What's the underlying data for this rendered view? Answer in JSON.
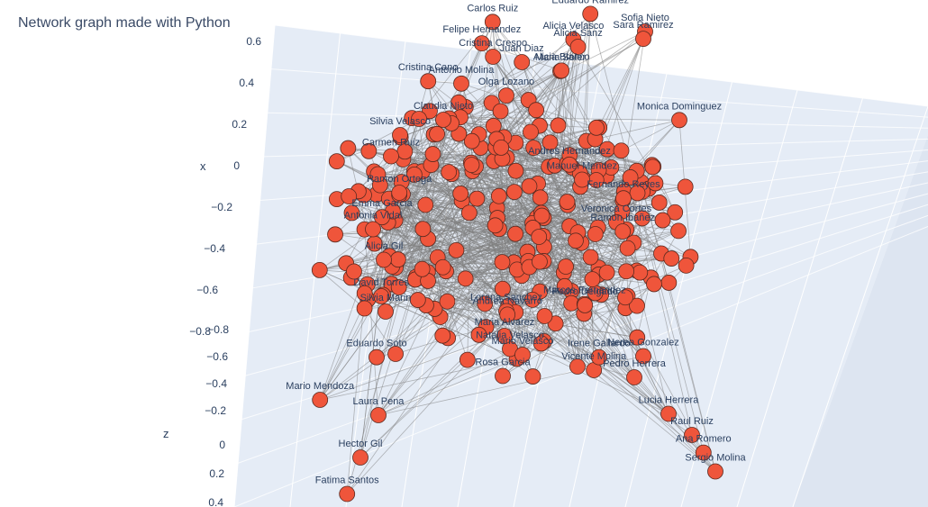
{
  "title": "Network graph made with Python",
  "colors": {
    "node_fill": "#ef553b",
    "node_stroke": "#5a2a20",
    "edge": "#7f7f7f",
    "pane_back": "#e5ecf6",
    "pane_floor": "#dde5f1",
    "grid": "#ffffff",
    "text": "#2a3f5f"
  },
  "chart_data": {
    "type": "scatter",
    "subtype": "3d-network",
    "title": "Network graph made with Python",
    "axes": {
      "x": {
        "label": "x",
        "ticks": [
          "0.6",
          "0.4",
          "0.2",
          "0",
          "−0.2",
          "−0.4",
          "−0.6",
          "−0.8"
        ]
      },
      "z": {
        "label": "z",
        "ticks": [
          "−0.8",
          "−0.6",
          "−0.4",
          "−0.2",
          "0",
          "0.2",
          "0.4"
        ]
      }
    },
    "grid": true,
    "legend": "none",
    "nodes": [
      {
        "label": "Carlos Ruiz",
        "x": 0.57,
        "y": 0.05,
        "z": -0.63
      },
      {
        "label": "Eduardo Ramirez",
        "x": 0.6,
        "y": 0.5,
        "z": -0.62
      },
      {
        "label": "Sofia Nieto",
        "x": 0.55,
        "y": 0.75,
        "z": -0.6
      },
      {
        "label": "Sara Ramirez",
        "x": 0.53,
        "y": 0.74,
        "z": -0.59
      },
      {
        "label": "Alicia Velasco",
        "x": 0.52,
        "y": 0.42,
        "z": -0.61
      },
      {
        "label": "Alicia Sanz",
        "x": 0.5,
        "y": 0.44,
        "z": -0.6
      },
      {
        "label": "Felipe Hernandez",
        "x": 0.5,
        "y": 0.0,
        "z": -0.63
      },
      {
        "label": "Cristina Crespo",
        "x": 0.46,
        "y": 0.05,
        "z": -0.62
      },
      {
        "label": "Juan Diaz",
        "x": 0.45,
        "y": 0.18,
        "z": -0.6
      },
      {
        "label": "Maria Soler",
        "x": 0.44,
        "y": 0.35,
        "z": -0.55
      },
      {
        "label": "Alicia Blanco",
        "x": 0.43,
        "y": 0.36,
        "z": -0.58
      },
      {
        "label": "Cristina Cano",
        "x": 0.38,
        "y": -0.25,
        "z": -0.62
      },
      {
        "label": "Antonio Molina",
        "x": 0.38,
        "y": -0.1,
        "z": -0.6
      },
      {
        "label": "Olga Lozano",
        "x": 0.36,
        "y": 0.1,
        "z": -0.55
      },
      {
        "label": "Monica Dominguez",
        "x": 0.28,
        "y": 0.9,
        "z": -0.55
      },
      {
        "label": "Claudia Nieto",
        "x": 0.3,
        "y": -0.2,
        "z": -0.5
      },
      {
        "label": "Silvia Velasco",
        "x": 0.25,
        "y": -0.4,
        "z": -0.5
      },
      {
        "label": "Carmen Ruiz",
        "x": 0.2,
        "y": -0.45,
        "z": -0.45
      },
      {
        "label": "Andres Hernandez",
        "x": 0.23,
        "y": 0.35,
        "z": -0.3
      },
      {
        "label": "Manuel Mendez",
        "x": 0.2,
        "y": 0.4,
        "z": -0.25
      },
      {
        "label": "Fernando Reyes",
        "x": 0.12,
        "y": 0.6,
        "z": -0.3
      },
      {
        "label": "Veronica Cortes",
        "x": 0.08,
        "y": 0.55,
        "z": -0.2
      },
      {
        "label": "Ramon Ibañez",
        "x": 0.05,
        "y": 0.58,
        "z": -0.2
      },
      {
        "label": "Ramon Ortega",
        "x": 0.1,
        "y": -0.42,
        "z": -0.4
      },
      {
        "label": "Emma Garcia",
        "x": 0.02,
        "y": -0.5,
        "z": -0.4
      },
      {
        "label": "Antonia Vidal",
        "x": 0.0,
        "y": -0.55,
        "z": -0.35
      },
      {
        "label": "Alicia Gil",
        "x": -0.1,
        "y": -0.5,
        "z": -0.35
      },
      {
        "label": "David Torres",
        "x": -0.2,
        "y": -0.52,
        "z": -0.3
      },
      {
        "label": "Silvia Marin",
        "x": -0.25,
        "y": -0.5,
        "z": -0.3
      },
      {
        "label": "Eduardo Soto",
        "x": -0.38,
        "y": -0.55,
        "z": -0.25
      },
      {
        "label": "Mario Mendoza",
        "x": -0.5,
        "y": -0.82,
        "z": -0.2
      },
      {
        "label": "Laura Pena",
        "x": -0.55,
        "y": -0.55,
        "z": -0.2
      },
      {
        "label": "Hector Gil",
        "x": -0.65,
        "y": -0.65,
        "z": -0.1
      },
      {
        "label": "Fatima Santos",
        "x": -0.75,
        "y": -0.72,
        "z": -0.05
      },
      {
        "label": "Natalia Velasco",
        "x": -0.2,
        "y": 0.0,
        "z": 0.15
      },
      {
        "label": "Mario Velasco",
        "x": -0.2,
        "y": 0.05,
        "z": 0.2
      },
      {
        "label": "Maria Alvarez",
        "x": -0.1,
        "y": -0.05,
        "z": 0.3
      },
      {
        "label": "Rosa Garcia",
        "x": -0.25,
        "y": -0.05,
        "z": 0.25
      },
      {
        "label": "Lorena Sanchez",
        "x": 0.0,
        "y": -0.05,
        "z": 0.35
      },
      {
        "label": "Andrea Navarro",
        "x": 0.0,
        "y": -0.05,
        "z": 0.38
      },
      {
        "label": "Vicente Molina",
        "x": -0.25,
        "y": 0.38,
        "z": 0.2
      },
      {
        "label": "Irene Gallardo",
        "x": -0.2,
        "y": 0.4,
        "z": 0.22
      },
      {
        "label": "Marcos Fernandez",
        "x": 0.05,
        "y": 0.3,
        "z": 0.42
      },
      {
        "label": "Pedro Delgado",
        "x": 0.05,
        "y": 0.3,
        "z": 0.43
      },
      {
        "label": "Lucia Herrera",
        "x": -0.45,
        "y": 0.75,
        "z": 0.05
      },
      {
        "label": "Raul Ruiz",
        "x": -0.5,
        "y": 0.85,
        "z": 0.1
      },
      {
        "label": "Ana Romero",
        "x": -0.55,
        "y": 0.9,
        "z": 0.12
      },
      {
        "label": "Sergio Molina",
        "x": -0.6,
        "y": 0.95,
        "z": 0.15
      },
      {
        "label": "Nerea Gonzalez",
        "x": -0.3,
        "y": 0.65,
        "z": -0.05
      },
      {
        "label": "Pedro Herrera",
        "x": -0.35,
        "y": 0.6,
        "z": 0.0
      }
    ]
  }
}
